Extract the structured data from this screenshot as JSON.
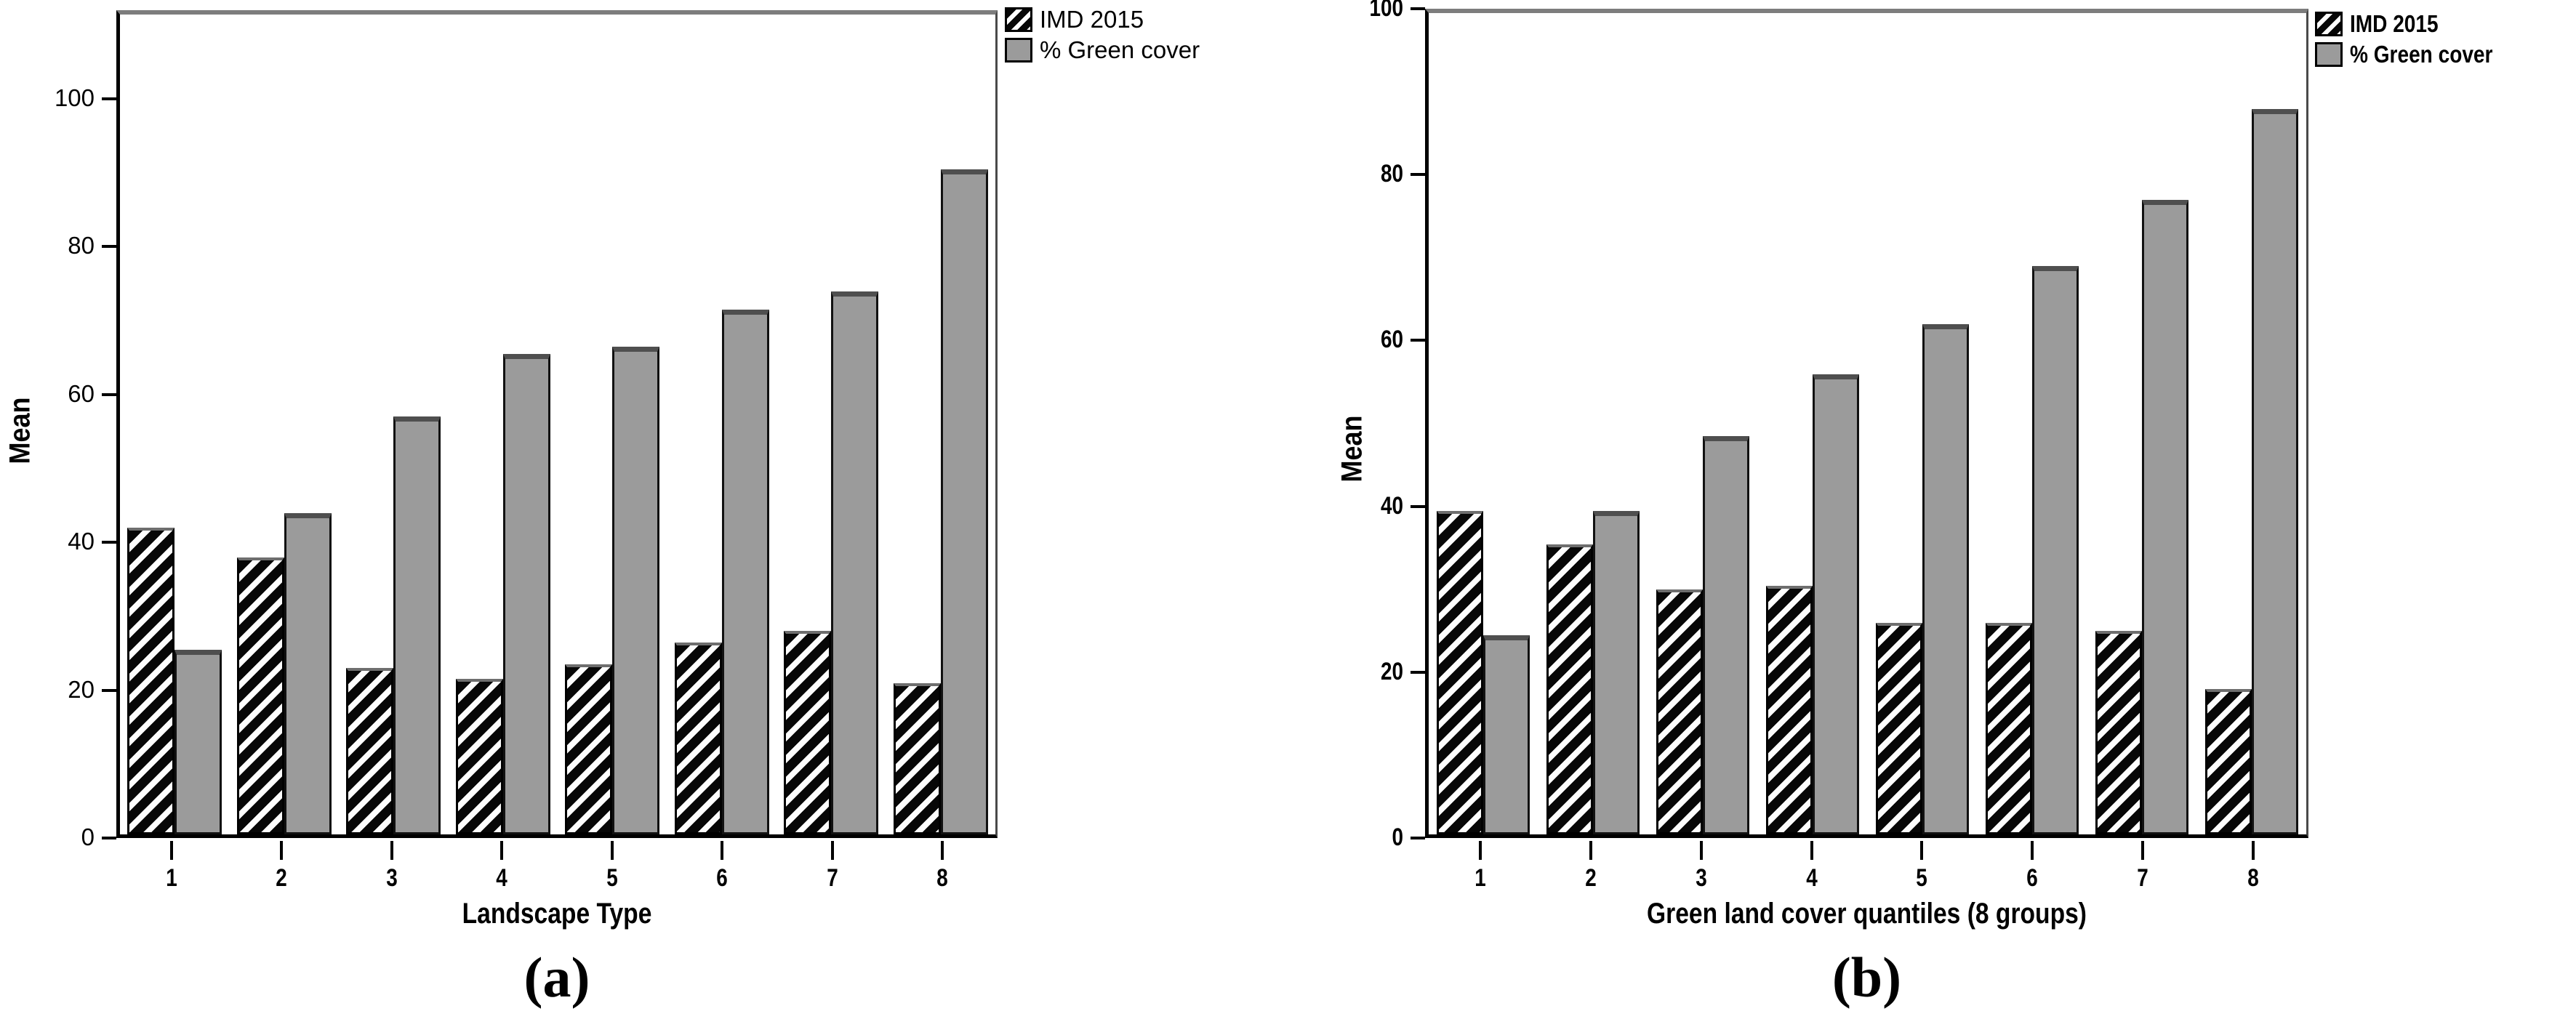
{
  "figure": {
    "ylabel": "Mean",
    "legend_items": [
      {
        "label": "IMD 2015",
        "swatch": "hatched"
      },
      {
        "label": "% Green cover",
        "swatch": "gray"
      }
    ]
  },
  "colors": {
    "bar_gray": "#9b9b9b",
    "bar_gray_top": "#4f4f4f",
    "hatch_dark": "#070707",
    "hatch_light": "#fdfdfd",
    "axis": "#000000",
    "frame_top": "#7d7d7d"
  },
  "chart_data": [
    {
      "id": "a",
      "type": "bar",
      "caption": "(a)",
      "xlabel": "Landscape Type",
      "ylabel": "Mean",
      "categories": [
        "1",
        "2",
        "3",
        "4",
        "5",
        "6",
        "7",
        "8"
      ],
      "series": [
        {
          "name": "IMD 2015",
          "style": "hatched",
          "values": [
            41.5,
            37.5,
            22.5,
            21,
            23,
            26,
            27.5,
            20.5
          ]
        },
        {
          "name": "% Green cover",
          "style": "gray",
          "values": [
            25,
            43.5,
            56.5,
            65,
            66,
            71,
            73.5,
            90
          ]
        }
      ],
      "yticks": [
        0,
        20,
        40,
        60,
        80,
        100
      ],
      "ylim": [
        0,
        112
      ],
      "grid": false,
      "legend_position": "top-right-outside",
      "label_weight": "normal"
    },
    {
      "id": "b",
      "type": "bar",
      "caption": "(b)",
      "xlabel": "Green land cover quantiles (8 groups)",
      "ylabel": "Mean",
      "categories": [
        "1",
        "2",
        "3",
        "4",
        "5",
        "6",
        "7",
        "8"
      ],
      "series": [
        {
          "name": "IMD 2015",
          "style": "hatched",
          "values": [
            39,
            35,
            29.5,
            30,
            25.5,
            25.5,
            24.5,
            17.5
          ]
        },
        {
          "name": "% Green cover",
          "style": "gray",
          "values": [
            24,
            39,
            48,
            55.5,
            61.5,
            68.5,
            76.5,
            87.5
          ]
        }
      ],
      "yticks": [
        0,
        20,
        40,
        60,
        80,
        100
      ],
      "ylim": [
        0,
        100
      ],
      "grid": false,
      "legend_position": "top-right-outside",
      "label_weight": "bold"
    }
  ]
}
